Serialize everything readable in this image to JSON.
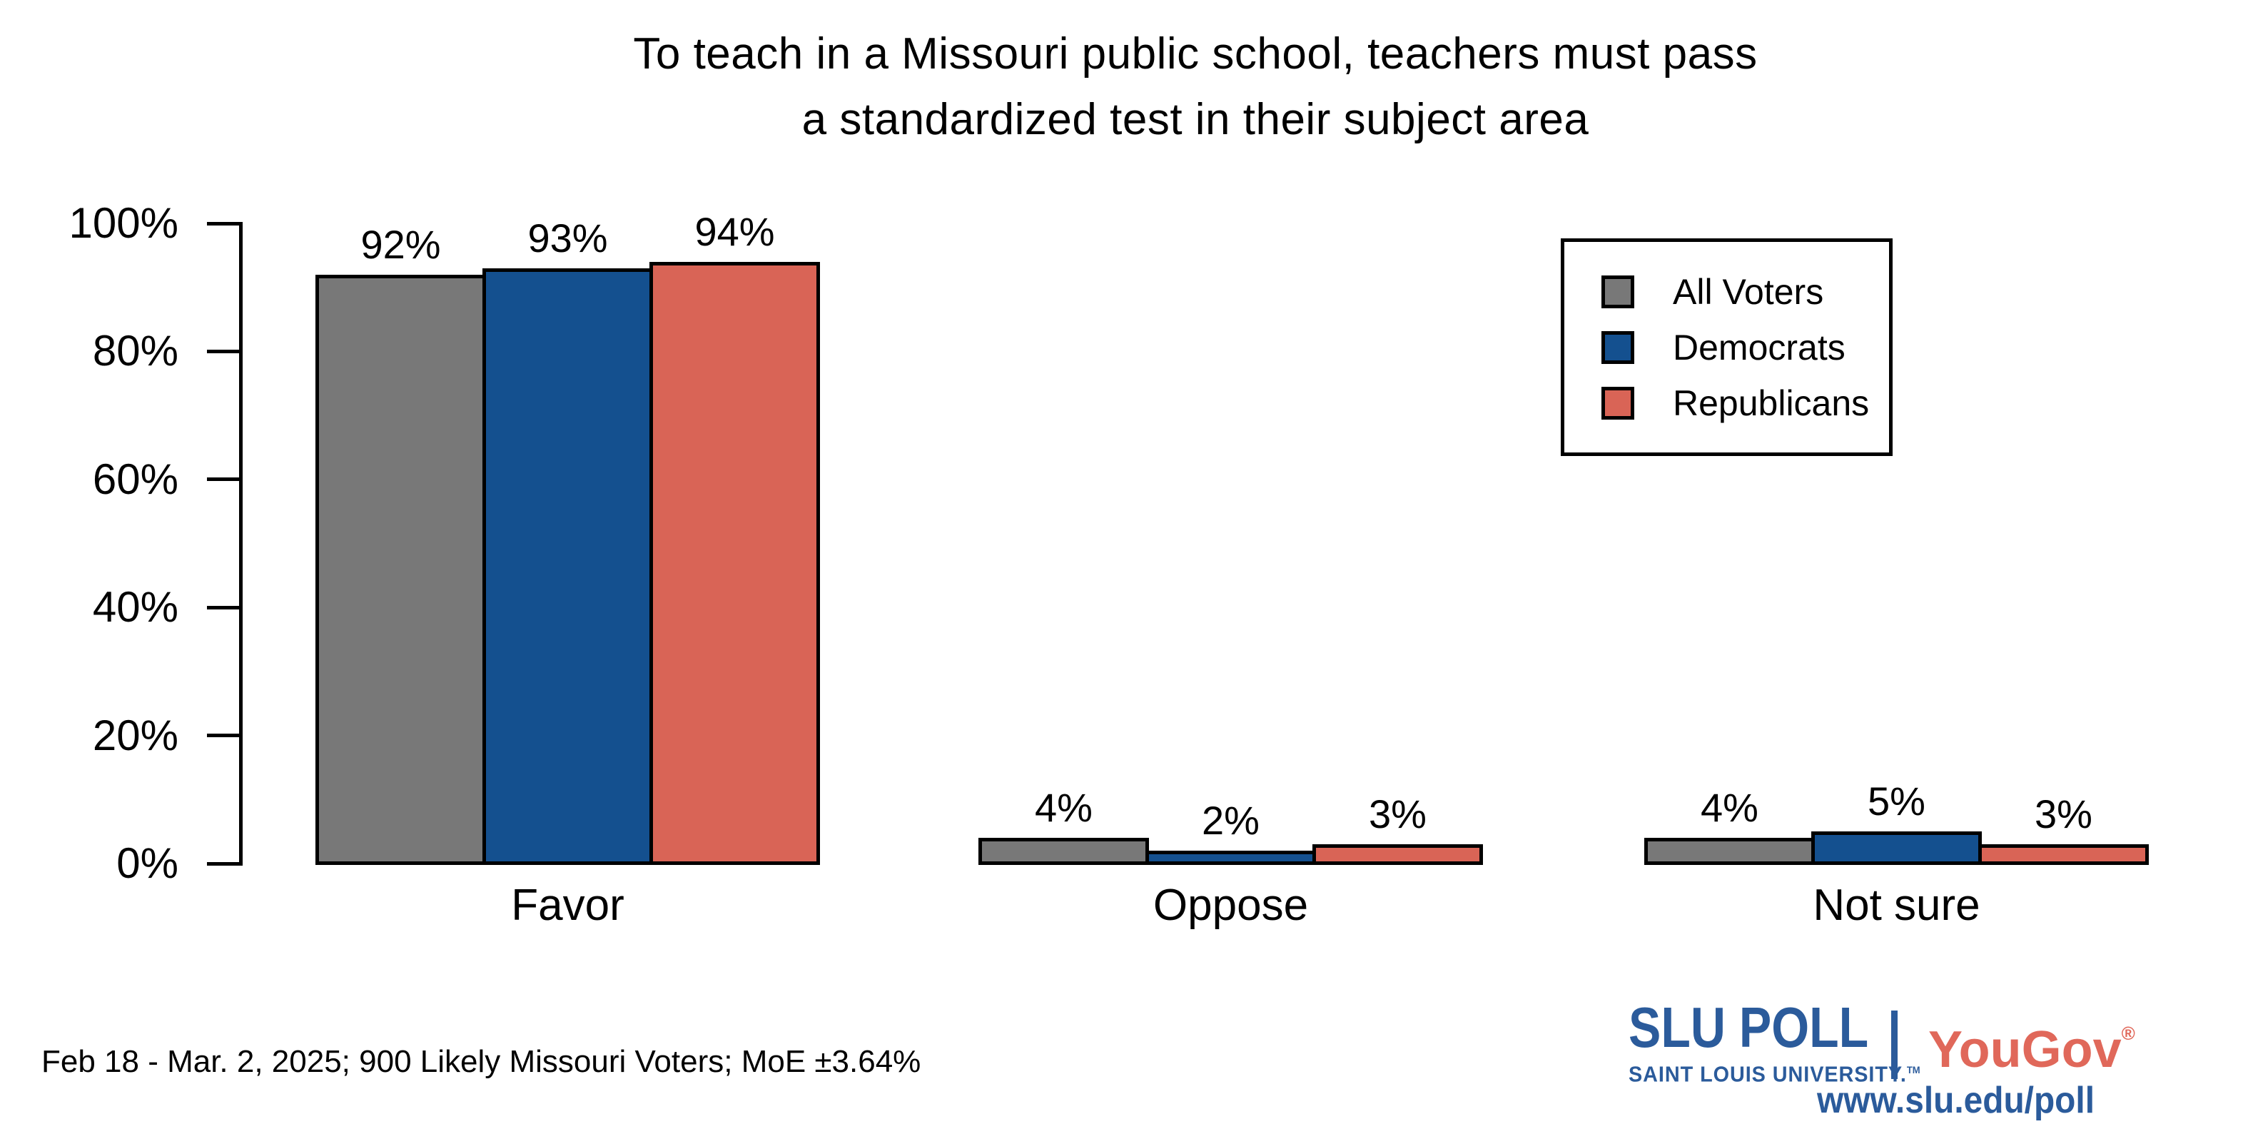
{
  "title": {
    "line1": "To teach in a Missouri public school, teachers must pass",
    "line2": "a standardized test in their subject area"
  },
  "chart_data": {
    "type": "bar",
    "title": "To teach in a Missouri public school, teachers must pass a standardized test in their subject area",
    "categories": [
      "Favor",
      "Oppose",
      "Not sure"
    ],
    "series": [
      {
        "name": "All Voters",
        "color": "#787878",
        "values": [
          92,
          4,
          4
        ]
      },
      {
        "name": "Democrats",
        "color": "#14508F",
        "values": [
          93,
          2,
          5
        ]
      },
      {
        "name": "Republicans",
        "color": "#D96456",
        "values": [
          94,
          3,
          3
        ]
      }
    ],
    "value_labels": [
      [
        "92%",
        "93%",
        "94%"
      ],
      [
        "4%",
        "2%",
        "3%"
      ],
      [
        "4%",
        "5%",
        "3%"
      ]
    ],
    "xlabel": "",
    "ylabel": "",
    "ylim": [
      0,
      100
    ],
    "yticks": [
      0,
      20,
      40,
      60,
      80,
      100
    ],
    "ytick_labels": [
      "0%",
      "20%",
      "40%",
      "60%",
      "80%",
      "100%"
    ],
    "grid": false,
    "legend_position": "top-right",
    "bar_outline_color": "#000000"
  },
  "legend": {
    "items": [
      {
        "label": "All Voters",
        "color": "#787878"
      },
      {
        "label": "Democrats",
        "color": "#14508F"
      },
      {
        "label": "Republicans",
        "color": "#D96456"
      }
    ]
  },
  "footnote": "Feb 18 - Mar. 2, 2025; 900 Likely Missouri Voters; MoE ±3.64%",
  "branding": {
    "slu_name": "SLU POLL",
    "slu_sub": "SAINT LOUIS UNIVERSITY.",
    "slu_tm": "TM",
    "yougov": "YouGov",
    "yougov_reg": "®",
    "url": "www.slu.edu/poll",
    "slu_blue": "#2B5B9B",
    "yougov_red": "#E0685A"
  }
}
